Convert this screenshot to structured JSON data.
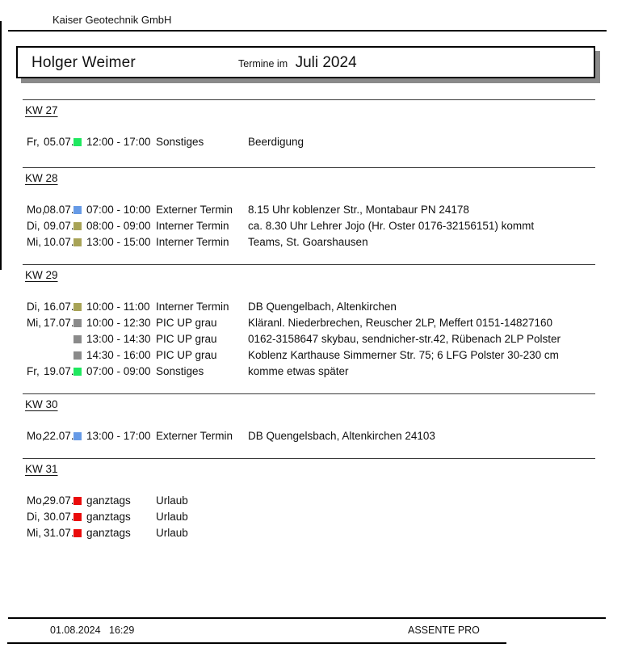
{
  "company": "Kaiser Geotechnik GmbH",
  "header": {
    "person": "Holger Weimer",
    "period_label": "Termine im",
    "period": "Juli 2024"
  },
  "colors": {
    "green": "#1FE85F",
    "blue": "#669AE6",
    "olive": "#A8A356",
    "gray": "#8A8A8A",
    "red": "#EA0B0B"
  },
  "weeks": [
    {
      "label": "KW 27",
      "rows": [
        {
          "day": "Fr,",
          "date": "05.07.",
          "color": "green",
          "time": "12:00 - 17:00",
          "category": "Sonstiges",
          "description": "Beerdigung"
        }
      ]
    },
    {
      "label": "KW 28",
      "rows": [
        {
          "day": "Mo,",
          "date": "08.07.",
          "color": "blue",
          "time": "07:00 - 10:00",
          "category": "Externer Termin",
          "description": "8.15 Uhr koblenzer Str., Montabaur PN 24178"
        },
        {
          "day": "Di,",
          "date": "09.07.",
          "color": "olive",
          "time": "08:00 - 09:00",
          "category": "Interner Termin",
          "description": "ca. 8.30 Uhr Lehrer Jojo (Hr. Oster 0176-32156151) kommt"
        },
        {
          "day": "Mi,",
          "date": "10.07.",
          "color": "olive",
          "time": "13:00 - 15:00",
          "category": "Interner Termin",
          "description": "Teams, St. Goarshausen"
        }
      ]
    },
    {
      "label": "KW 29",
      "rows": [
        {
          "day": "Di,",
          "date": "16.07.",
          "color": "olive",
          "time": "10:00 - 11:00",
          "category": "Interner Termin",
          "description": "DB Quengelbach, Altenkirchen"
        },
        {
          "day": "Mi,",
          "date": "17.07.",
          "color": "gray",
          "time": "10:00 - 12:30",
          "category": "PIC UP grau",
          "description": "Kläranl. Niederbrechen, Reuscher 2LP, Meffert 0151-14827160"
        },
        {
          "day": "",
          "date": "",
          "color": "gray",
          "time": "13:00 - 14:30",
          "category": "PIC UP grau",
          "description": "0162-3158647 skybau, sendnicher-str.42, Rübenach 2LP Polster"
        },
        {
          "day": "",
          "date": "",
          "color": "gray",
          "time": "14:30 - 16:00",
          "category": "PIC UP grau",
          "description": "Koblenz Karthause Simmerner Str. 75; 6 LFG Polster 30-230 cm"
        },
        {
          "day": "Fr,",
          "date": "19.07.",
          "color": "green",
          "time": "07:00 - 09:00",
          "category": "Sonstiges",
          "description": "komme etwas später"
        }
      ]
    },
    {
      "label": "KW 30",
      "rows": [
        {
          "day": "Mo,",
          "date": "22.07.",
          "color": "blue",
          "time": "13:00 - 17:00",
          "category": "Externer Termin",
          "description": "DB Quengelsbach, Altenkirchen 24103"
        }
      ]
    },
    {
      "label": "KW 31",
      "rows": [
        {
          "day": "Mo,",
          "date": "29.07.",
          "color": "red",
          "time": "ganztags",
          "category": "Urlaub",
          "description": ""
        },
        {
          "day": "Di,",
          "date": "30.07.",
          "color": "red",
          "time": "ganztags",
          "category": "Urlaub",
          "description": ""
        },
        {
          "day": "Mi,",
          "date": "31.07.",
          "color": "red",
          "time": "ganztags",
          "category": "Urlaub",
          "description": ""
        }
      ]
    }
  ],
  "footer": {
    "date": "01.08.2024",
    "time": "16:29",
    "app": "ASSENTE PRO"
  }
}
